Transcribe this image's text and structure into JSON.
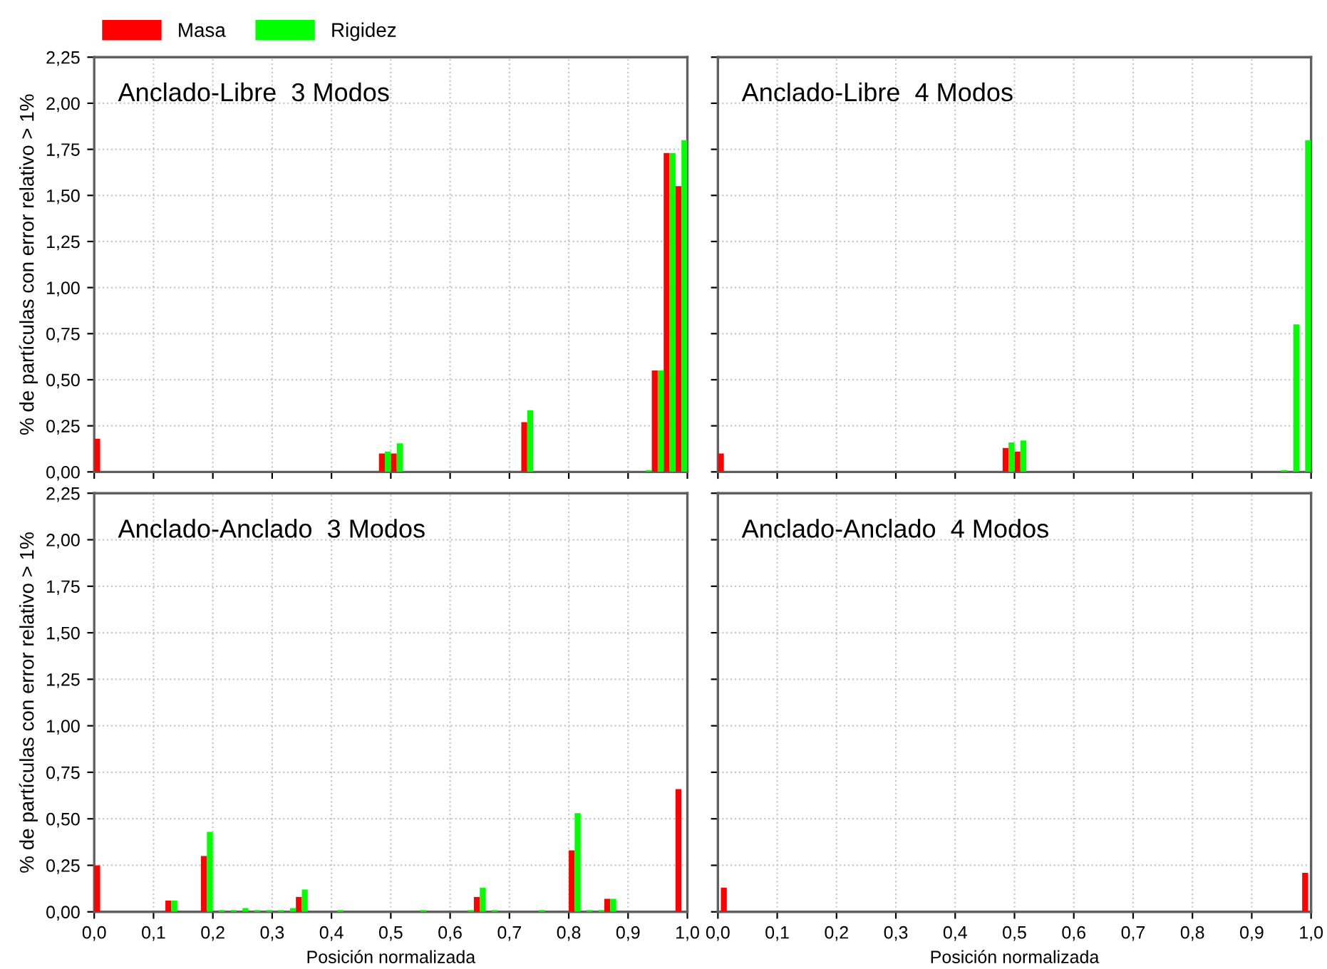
{
  "chart_data": [
    {
      "type": "bar",
      "title": "Anclado-Libre  3 Modos",
      "ylabel": "% de partículas con error relativo > 1%",
      "xlim": [
        0,
        1
      ],
      "ylim": [
        0,
        2.25
      ],
      "xticks": [
        {
          "value": 0,
          "label": null
        },
        {
          "value": 0.1,
          "label": null
        },
        {
          "value": 0.2,
          "label": null
        },
        {
          "value": 0.3,
          "label": null
        },
        {
          "value": 0.4,
          "label": null
        },
        {
          "value": 0.5,
          "label": null
        },
        {
          "value": 0.6,
          "label": null
        },
        {
          "value": 0.7,
          "label": null
        },
        {
          "value": 0.8,
          "label": null
        },
        {
          "value": 0.9,
          "label": null
        },
        {
          "value": 1,
          "label": null
        }
      ],
      "yticks": [
        {
          "value": 0,
          "label": "0,00"
        },
        {
          "value": 0.25,
          "label": "0,25"
        },
        {
          "value": 0.5,
          "label": "0,50"
        },
        {
          "value": 0.75,
          "label": "0,75"
        },
        {
          "value": 1,
          "label": "1,00"
        },
        {
          "value": 1.25,
          "label": "1,25"
        },
        {
          "value": 1.5,
          "label": "1,50"
        },
        {
          "value": 1.75,
          "label": "1,75"
        },
        {
          "value": 2,
          "label": "2,00"
        },
        {
          "value": 2.25,
          "label": "2,25"
        }
      ],
      "tick_labels": "y",
      "grid": true,
      "legend": "top left",
      "series": [
        {
          "name": "Masa",
          "color": "#ff0000",
          "x": [
            0.01,
            0.49,
            0.51,
            0.73,
            0.95,
            0.97,
            0.99
          ],
          "values": [
            0.18,
            0.1,
            0.1,
            0.27,
            0.55,
            1.73,
            1.55
          ]
        },
        {
          "name": "Rigidez",
          "color": "#00ff00",
          "x": [
            0.49,
            0.51,
            0.73,
            0.93,
            0.95,
            0.97,
            0.99
          ],
          "values": [
            0.11,
            0.155,
            0.335,
            0.01,
            0.55,
            1.73,
            1.8
          ]
        }
      ]
    },
    {
      "type": "bar",
      "title": "Anclado-Libre  4 Modos",
      "xlim": [
        0,
        1
      ],
      "ylim": [
        0,
        2.25
      ],
      "xticks": [
        {
          "value": 0,
          "label": null
        },
        {
          "value": 0.1,
          "label": null
        },
        {
          "value": 0.2,
          "label": null
        },
        {
          "value": 0.3,
          "label": null
        },
        {
          "value": 0.4,
          "label": null
        },
        {
          "value": 0.5,
          "label": null
        },
        {
          "value": 0.6,
          "label": null
        },
        {
          "value": 0.7,
          "label": null
        },
        {
          "value": 0.8,
          "label": null
        },
        {
          "value": 0.9,
          "label": null
        },
        {
          "value": 1,
          "label": null
        }
      ],
      "yticks": [
        {
          "value": 0,
          "label": null
        },
        {
          "value": 0.25,
          "label": null
        },
        {
          "value": 0.5,
          "label": null
        },
        {
          "value": 0.75,
          "label": null
        },
        {
          "value": 1,
          "label": null
        },
        {
          "value": 1.25,
          "label": null
        },
        {
          "value": 1.5,
          "label": null
        },
        {
          "value": 1.75,
          "label": null
        },
        {
          "value": 2,
          "label": null
        },
        {
          "value": 2.25,
          "label": null
        }
      ],
      "tick_labels": false,
      "grid": true,
      "series": [
        {
          "color": "#ff0000",
          "x": [
            0.01,
            0.49,
            0.51
          ],
          "values": [
            0.1,
            0.13,
            0.11
          ]
        },
        {
          "color": "#00ff00",
          "x": [
            0.49,
            0.51,
            0.95,
            0.97,
            0.99
          ],
          "values": [
            0.16,
            0.17,
            0.01,
            0.8,
            1.8
          ]
        }
      ]
    },
    {
      "type": "bar",
      "title": "Anclado-Anclado  3 Modos",
      "xlabel": "Posición normalizada",
      "ylabel": "% de partículas con error relativo > 1%",
      "xlim": [
        0,
        1
      ],
      "ylim": [
        0,
        2.25
      ],
      "xticks": [
        {
          "value": 0,
          "label": "0,0"
        },
        {
          "value": 0.1,
          "label": "0,1"
        },
        {
          "value": 0.2,
          "label": "0,2"
        },
        {
          "value": 0.3,
          "label": "0,3"
        },
        {
          "value": 0.4,
          "label": "0,4"
        },
        {
          "value": 0.5,
          "label": "0,5"
        },
        {
          "value": 0.6,
          "label": "0,6"
        },
        {
          "value": 0.7,
          "label": "0,7"
        },
        {
          "value": 0.8,
          "label": "0,8"
        },
        {
          "value": 0.9,
          "label": "0,9"
        },
        {
          "value": 1,
          "label": "1,0"
        }
      ],
      "yticks": [
        {
          "value": 0,
          "label": "0,00"
        },
        {
          "value": 0.25,
          "label": "0,25"
        },
        {
          "value": 0.5,
          "label": "0,50"
        },
        {
          "value": 0.75,
          "label": "0,75"
        },
        {
          "value": 1,
          "label": "1,00"
        },
        {
          "value": 1.25,
          "label": "1,25"
        },
        {
          "value": 1.5,
          "label": "1,50"
        },
        {
          "value": 1.75,
          "label": "1,75"
        },
        {
          "value": 2,
          "label": "2,00"
        },
        {
          "value": 2.25,
          "label": "2,25"
        }
      ],
      "grid": true,
      "series": [
        {
          "color": "#ff0000",
          "x": [
            0.01,
            0.13,
            0.19,
            0.35,
            0.65,
            0.81,
            0.87,
            0.99
          ],
          "values": [
            0.25,
            0.06,
            0.3,
            0.08,
            0.08,
            0.33,
            0.07,
            0.66
          ]
        },
        {
          "color": "#00ff00",
          "x": [
            0.13,
            0.19,
            0.21,
            0.23,
            0.25,
            0.27,
            0.29,
            0.31,
            0.33,
            0.35,
            0.41,
            0.55,
            0.63,
            0.65,
            0.67,
            0.75,
            0.81,
            0.83,
            0.85,
            0.87
          ],
          "values": [
            0.06,
            0.43,
            0.01,
            0.01,
            0.02,
            0.01,
            0.01,
            0.01,
            0.02,
            0.12,
            0.01,
            0.01,
            0.01,
            0.13,
            0.01,
            0.01,
            0.53,
            0.01,
            0.01,
            0.07
          ]
        }
      ]
    },
    {
      "type": "bar",
      "title": "Anclado-Anclado  4 Modos",
      "xlabel": "Posición normalizada",
      "xlim": [
        0,
        1
      ],
      "ylim": [
        0,
        2.25
      ],
      "xticks": [
        {
          "value": 0,
          "label": "0,0"
        },
        {
          "value": 0.1,
          "label": "0,1"
        },
        {
          "value": 0.2,
          "label": "0,2"
        },
        {
          "value": 0.3,
          "label": "0,3"
        },
        {
          "value": 0.4,
          "label": "0,4"
        },
        {
          "value": 0.5,
          "label": "0,5"
        },
        {
          "value": 0.6,
          "label": "0,6"
        },
        {
          "value": 0.7,
          "label": "0,7"
        },
        {
          "value": 0.8,
          "label": "0,8"
        },
        {
          "value": 0.9,
          "label": "0,9"
        },
        {
          "value": 1,
          "label": "1,0"
        }
      ],
      "yticks": [
        {
          "value": 0,
          "label": null
        },
        {
          "value": 0.25,
          "label": null
        },
        {
          "value": 0.5,
          "label": null
        },
        {
          "value": 0.75,
          "label": null
        },
        {
          "value": 1,
          "label": null
        },
        {
          "value": 1.25,
          "label": null
        },
        {
          "value": 1.5,
          "label": null
        },
        {
          "value": 1.75,
          "label": null
        },
        {
          "value": 2,
          "label": null
        },
        {
          "value": 2.25,
          "label": null
        }
      ],
      "tick_labels": "x",
      "grid": true,
      "series": [
        {
          "color": "#ff0000",
          "x": [
            0.01,
            0.99
          ],
          "values": [
            0.13,
            0.21
          ]
        }
      ]
    }
  ]
}
